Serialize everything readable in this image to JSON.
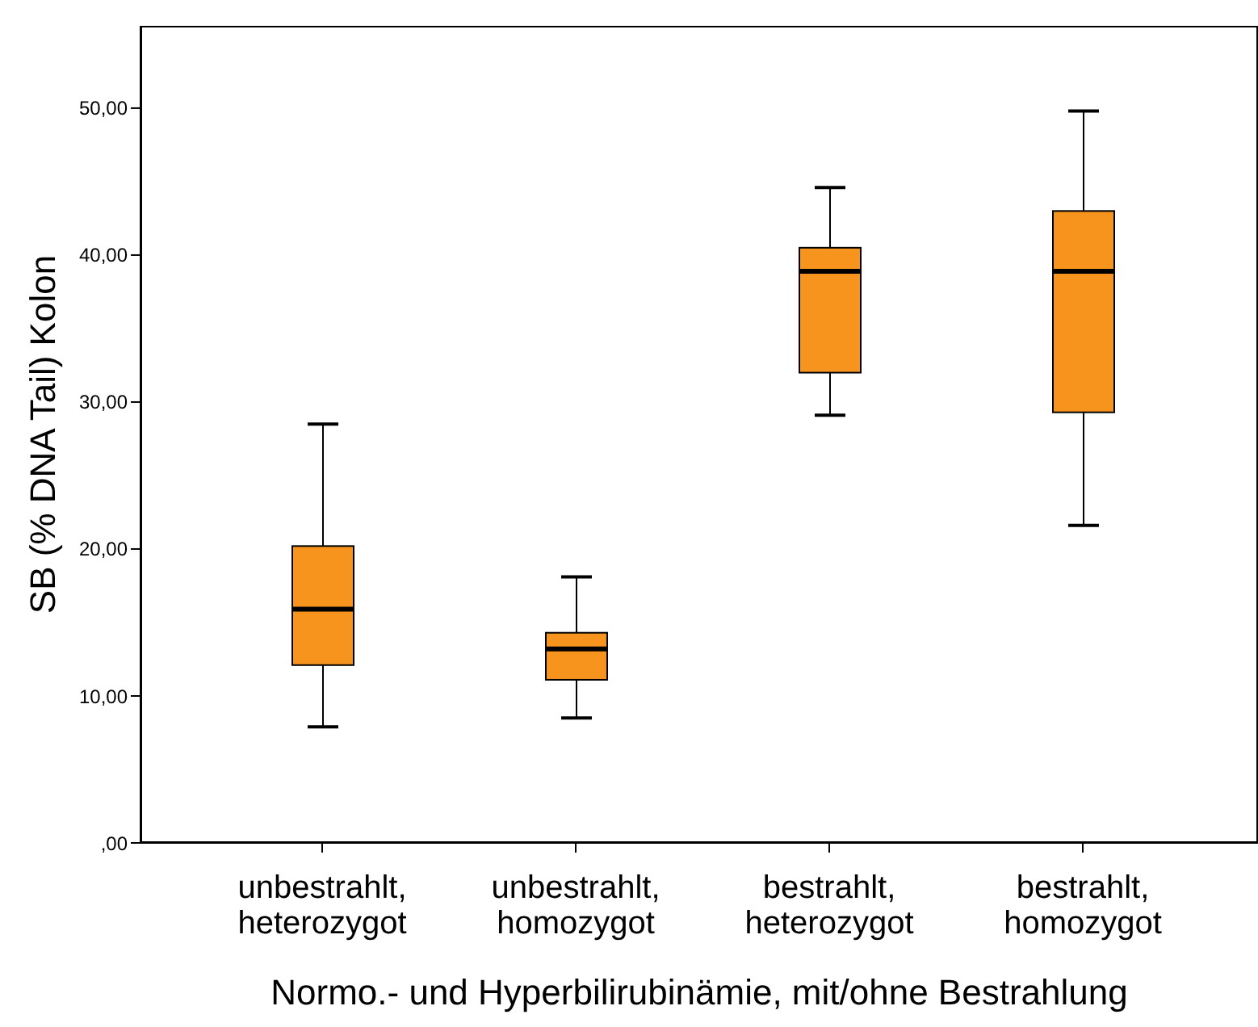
{
  "chart_data": {
    "type": "box",
    "xlabel": "Normo.- und Hyperbilirubinämie, mit/ohne Bestrahlung",
    "ylabel": "SB (% DNA Tail) Kolon",
    "categories": [
      "unbestrahlt, heterozygot",
      "unbestrahlt, homozygot",
      "bestrahlt, heterozygot",
      "bestrahlt, homozygot"
    ],
    "color": "#f7941d",
    "boxes": [
      {
        "low": 7.9,
        "q1": 12.1,
        "median": 15.9,
        "q3": 20.2,
        "high": 28.5
      },
      {
        "low": 8.5,
        "q1": 11.1,
        "median": 13.2,
        "q3": 14.3,
        "high": 18.1
      },
      {
        "low": 29.1,
        "q1": 32.0,
        "median": 38.9,
        "q3": 40.5,
        "high": 44.6
      },
      {
        "low": 21.6,
        "q1": 29.3,
        "median": 38.9,
        "q3": 43.0,
        "high": 49.8
      }
    ],
    "ylim": [
      0,
      55.6
    ],
    "yticks": [
      {
        "value": 0,
        "label": ",00"
      },
      {
        "value": 10,
        "label": "10,00"
      },
      {
        "value": 20,
        "label": "20,00"
      },
      {
        "value": 30,
        "label": "30,00"
      },
      {
        "value": 40,
        "label": "40,00"
      },
      {
        "value": 50,
        "label": "50,00"
      }
    ],
    "grid": false
  }
}
